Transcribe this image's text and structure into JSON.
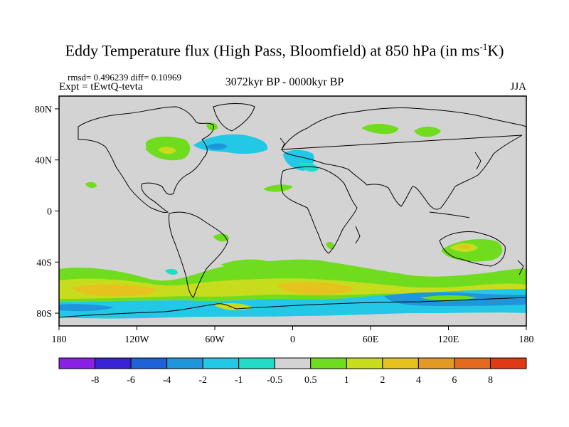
{
  "title": {
    "main": "Eddy Temperature flux (High Pass, Bloomfield) at 850 hPa (in ms",
    "superscript": "-1",
    "suffix": "K)"
  },
  "stats_line": "rmsd= 0.496239 diff= 0.10969",
  "experiment": "Expt = tEwtQ-tevta",
  "period": "3072kyr BP - 0000kyr BP",
  "season": "JJA",
  "axes": {
    "lat_labels": [
      "80N",
      "40N",
      "0",
      "40S",
      "80S"
    ],
    "lon_labels": [
      "180",
      "120W",
      "60W",
      "0",
      "60E",
      "120E",
      "180"
    ]
  },
  "colorbar": {
    "levels": [
      "-8",
      "-6",
      "-4",
      "-2",
      "-1",
      "-0.5",
      "0.5",
      "1",
      "2",
      "4",
      "6",
      "8"
    ],
    "colors": [
      "#8a1fe6",
      "#3a22d6",
      "#1e62d8",
      "#1f95dc",
      "#22c8e6",
      "#22dcc8",
      "#d3d3d3",
      "#6fdc1e",
      "#c8dc1e",
      "#e6c21e",
      "#e29a22",
      "#e46a1e",
      "#e03a14"
    ]
  },
  "colors": {
    "land_ocean_neutral": "#d3d3d3",
    "coastline": "#000000"
  }
}
